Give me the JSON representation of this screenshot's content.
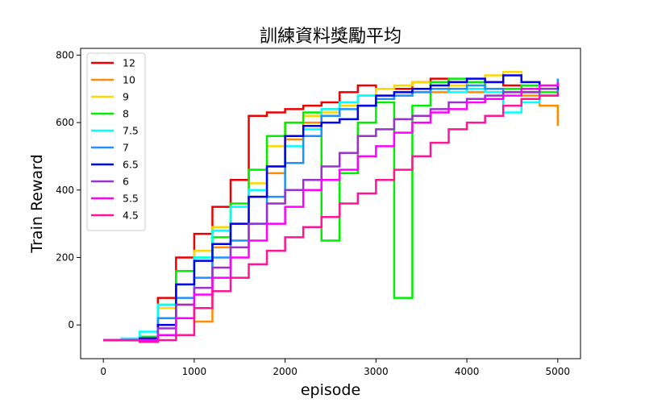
{
  "chart_data": {
    "type": "line",
    "title": "訓練資料獎勵平均",
    "xlabel": "episode",
    "ylabel": "Train Reward",
    "xlim": [
      -250,
      5250
    ],
    "ylim": [
      -100,
      820
    ],
    "xticks": [
      0,
      1000,
      2000,
      3000,
      4000,
      5000
    ],
    "yticks": [
      0,
      200,
      400,
      600,
      800
    ],
    "grid": false,
    "legend_position": "top-left",
    "step": true,
    "x": [
      0,
      200,
      400,
      600,
      800,
      1000,
      1200,
      1400,
      1600,
      1800,
      2000,
      2200,
      2400,
      2600,
      2800,
      3000,
      3200,
      3400,
      3600,
      3800,
      4000,
      4200,
      4400,
      4600,
      4800,
      5000
    ],
    "series": [
      {
        "name": "12",
        "color": "#ee0000",
        "values": [
          -45,
          -45,
          -35,
          80,
          200,
          270,
          350,
          430,
          620,
          630,
          640,
          650,
          660,
          690,
          710,
          700,
          700,
          720,
          730,
          720,
          700,
          720,
          710,
          690,
          700,
          720
        ]
      },
      {
        "name": "10",
        "color": "#ff8c00",
        "values": [
          -45,
          -45,
          -40,
          20,
          60,
          10,
          230,
          300,
          380,
          450,
          550,
          600,
          640,
          660,
          680,
          680,
          690,
          700,
          690,
          700,
          690,
          700,
          700,
          680,
          650,
          590
        ]
      },
      {
        "name": "9",
        "color": "#ffd700",
        "values": [
          -45,
          -45,
          -40,
          50,
          120,
          220,
          290,
          350,
          420,
          530,
          600,
          620,
          630,
          650,
          680,
          700,
          710,
          720,
          700,
          710,
          720,
          740,
          750,
          720,
          710,
          700
        ]
      },
      {
        "name": "8",
        "color": "#00ee00",
        "values": [
          -45,
          -45,
          -35,
          60,
          160,
          200,
          260,
          360,
          460,
          560,
          600,
          630,
          250,
          450,
          600,
          660,
          80,
          650,
          720,
          730,
          720,
          700,
          700,
          710,
          690,
          680
        ]
      },
      {
        "name": "7.5",
        "color": "#00ffff",
        "values": [
          -45,
          -40,
          -20,
          60,
          120,
          200,
          280,
          350,
          400,
          470,
          530,
          580,
          640,
          660,
          680,
          670,
          680,
          690,
          700,
          690,
          700,
          690,
          630,
          660,
          680,
          700
        ]
      },
      {
        "name": "7",
        "color": "#1e90ff",
        "values": [
          -45,
          -45,
          -40,
          20,
          80,
          140,
          200,
          250,
          300,
          380,
          480,
          560,
          620,
          640,
          650,
          670,
          680,
          690,
          700,
          700,
          710,
          700,
          690,
          700,
          680,
          730
        ]
      },
      {
        "name": "6.5",
        "color": "#0000ee",
        "values": [
          -45,
          -45,
          -40,
          0,
          120,
          190,
          240,
          300,
          380,
          470,
          560,
          590,
          600,
          610,
          650,
          680,
          690,
          700,
          710,
          720,
          730,
          720,
          740,
          720,
          700,
          710
        ]
      },
      {
        "name": "6",
        "color": "#9932cc",
        "values": [
          -45,
          -45,
          -45,
          -10,
          60,
          110,
          170,
          230,
          300,
          360,
          400,
          430,
          470,
          510,
          560,
          580,
          610,
          620,
          640,
          660,
          670,
          680,
          690,
          690,
          700,
          700
        ]
      },
      {
        "name": "5.5",
        "color": "#ff00ff",
        "values": [
          -45,
          -45,
          -45,
          -30,
          20,
          90,
          140,
          200,
          250,
          300,
          350,
          400,
          430,
          460,
          500,
          530,
          570,
          600,
          630,
          640,
          660,
          670,
          680,
          700,
          710,
          720
        ]
      },
      {
        "name": "4.5",
        "color": "#ff1493",
        "values": [
          -45,
          -45,
          -50,
          -45,
          -30,
          50,
          100,
          140,
          180,
          220,
          260,
          290,
          320,
          360,
          390,
          430,
          460,
          500,
          540,
          580,
          600,
          620,
          650,
          670,
          680,
          690
        ]
      }
    ]
  }
}
